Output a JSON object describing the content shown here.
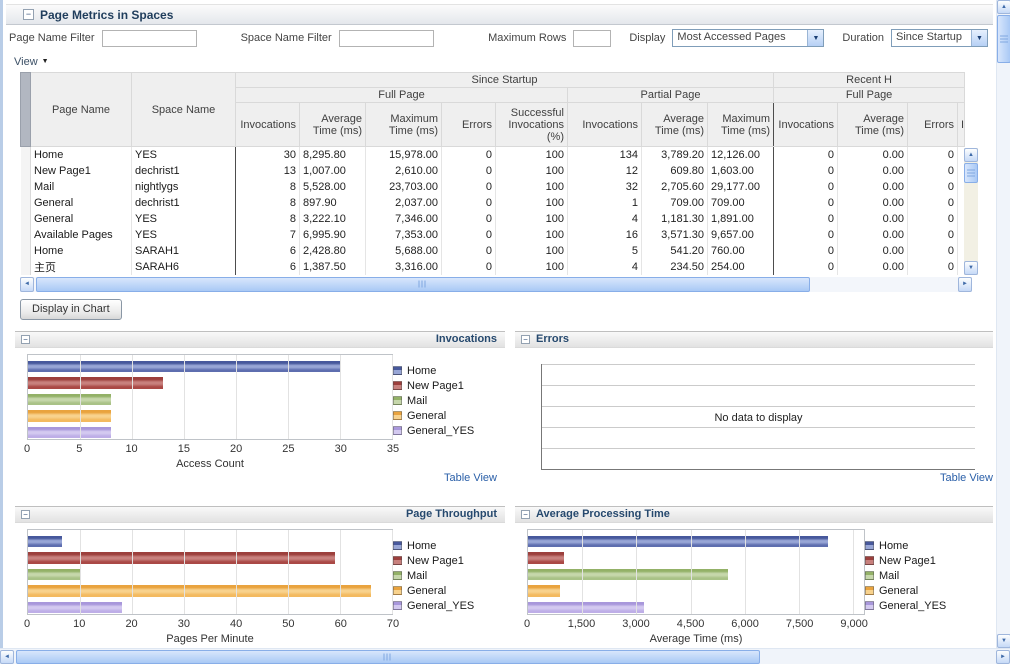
{
  "header": {
    "title": "Page Metrics in Spaces"
  },
  "filters": {
    "page_name_label": "Page Name Filter",
    "page_name_value": "",
    "space_name_label": "Space Name Filter",
    "space_name_value": "",
    "max_rows_label": "Maximum Rows",
    "max_rows_value": "",
    "display_label": "Display",
    "display_value": "Most Accessed Pages",
    "duration_label": "Duration",
    "duration_value": "Since Startup"
  },
  "toolbar": {
    "view_label": "View"
  },
  "buttons": {
    "display_in_chart": "Display in Chart"
  },
  "links": {
    "table_view": "Table View"
  },
  "icons": {
    "minus": "−",
    "caret": "▼",
    "up": "▲",
    "down": "▼",
    "left": "◄",
    "right": "►"
  },
  "table": {
    "col_page_name": "Page Name",
    "col_space_name": "Space Name",
    "group_since_startup": "Since Startup",
    "group_recent": "Recent H",
    "group_full_page": "Full Page",
    "group_partial_page": "Partial Page",
    "group_full_page_recent": "Full Page",
    "headers": [
      "Invocations",
      "Average Time (ms)",
      "Maximum Time (ms)",
      "Errors",
      "Successful Invocations (%)",
      "Invocations",
      "Average Time (ms)",
      "Maximum Time (ms)",
      "Invocations",
      "Average Time (ms)",
      "Errors"
    ],
    "clipped_col": "I",
    "rows": [
      [
        "Home",
        "YES",
        "30",
        "8,295.80",
        "15,978.00",
        "0",
        "100",
        "134",
        "3,789.20",
        "12,126.00",
        "0",
        "0.00",
        "0"
      ],
      [
        "New Page1",
        "dechrist1",
        "13",
        "1,007.00",
        "2,610.00",
        "0",
        "100",
        "12",
        "609.80",
        "1,603.00",
        "0",
        "0.00",
        "0"
      ],
      [
        "Mail",
        "nightlygs",
        "8",
        "5,528.00",
        "23,703.00",
        "0",
        "100",
        "32",
        "2,705.60",
        "29,177.00",
        "0",
        "0.00",
        "0"
      ],
      [
        "General",
        "dechrist1",
        "8",
        "897.90",
        "2,037.00",
        "0",
        "100",
        "1",
        "709.00",
        "709.00",
        "0",
        "0.00",
        "0"
      ],
      [
        "General",
        "YES",
        "8",
        "3,222.10",
        "7,346.00",
        "0",
        "100",
        "4",
        "1,181.30",
        "1,891.00",
        "0",
        "0.00",
        "0"
      ],
      [
        "Available Pages",
        "YES",
        "7",
        "6,995.90",
        "7,353.00",
        "0",
        "100",
        "16",
        "3,571.30",
        "9,657.00",
        "0",
        "0.00",
        "0"
      ],
      [
        "Home",
        "SARAH1",
        "6",
        "2,428.80",
        "5,688.00",
        "0",
        "100",
        "5",
        "541.20",
        "760.00",
        "0",
        "0.00",
        "0"
      ],
      [
        "主页",
        "SARAH6",
        "6",
        "1,387.50",
        "3,316.00",
        "0",
        "100",
        "4",
        "234.50",
        "254.00",
        "0",
        "0.00",
        "0"
      ]
    ]
  },
  "palette": {
    "Home": {
      "dark": "#47589c",
      "light": "#98a6d6",
      "base": "#5e6eaf"
    },
    "New Page1": {
      "dark": "#9c3f3c",
      "light": "#c8807d",
      "base": "#aa4946"
    },
    "Mail": {
      "dark": "#93b167",
      "light": "#c6d7ab",
      "base": "#a9c287"
    },
    "General": {
      "dark": "#e9a33e",
      "light": "#f8d28d",
      "base": "#f3ba60"
    },
    "General_YES": {
      "dark": "#a897db",
      "light": "#d3c9f0",
      "base": "#beaee7"
    }
  },
  "chart_data": [
    {
      "id": "invocations",
      "type": "bar",
      "title": "Invocations",
      "xlabel": "Access Count",
      "xmax": 35,
      "grid": true,
      "legend_position": "right",
      "ticks": [
        {
          "label": "0",
          "value": 0
        },
        {
          "label": "5",
          "value": 5
        },
        {
          "label": "10",
          "value": 10
        },
        {
          "label": "15",
          "value": 15
        },
        {
          "label": "20",
          "value": 20
        },
        {
          "label": "25",
          "value": 25
        },
        {
          "label": "30",
          "value": 30
        },
        {
          "label": "35",
          "value": 35
        }
      ],
      "series": [
        {
          "name": "Home",
          "value": 30
        },
        {
          "name": "New Page1",
          "value": 13
        },
        {
          "name": "Mail",
          "value": 8
        },
        {
          "name": "General",
          "value": 8
        },
        {
          "name": "General_YES",
          "value": 8
        }
      ]
    },
    {
      "id": "errors",
      "type": "bar",
      "title": "Errors",
      "empty_text": "No data to display",
      "series": []
    },
    {
      "id": "page_throughput",
      "type": "bar",
      "title": "Page Throughput",
      "xlabel": "Pages Per Minute",
      "xmax": 70,
      "grid": true,
      "legend_position": "right",
      "ticks": [
        {
          "label": "0",
          "value": 0
        },
        {
          "label": "10",
          "value": 10
        },
        {
          "label": "20",
          "value": 20
        },
        {
          "label": "30",
          "value": 30
        },
        {
          "label": "40",
          "value": 40
        },
        {
          "label": "50",
          "value": 50
        },
        {
          "label": "60",
          "value": 60
        },
        {
          "label": "70",
          "value": 70
        }
      ],
      "series": [
        {
          "name": "Home",
          "value": 6.5
        },
        {
          "name": "New Page1",
          "value": 59
        },
        {
          "name": "Mail",
          "value": 10
        },
        {
          "name": "General",
          "value": 66
        },
        {
          "name": "General_YES",
          "value": 18
        }
      ]
    },
    {
      "id": "average_processing_time",
      "type": "bar",
      "title": "Average Processing Time",
      "xlabel": "Average Time (ms)",
      "xmax": 9300,
      "grid": true,
      "legend_position": "right",
      "ticks": [
        {
          "label": "0",
          "value": 0
        },
        {
          "label": "1,500",
          "value": 1500
        },
        {
          "label": "3,000",
          "value": 3000
        },
        {
          "label": "4,500",
          "value": 4500
        },
        {
          "label": "6,000",
          "value": 6000
        },
        {
          "label": "7,500",
          "value": 7500
        },
        {
          "label": "9,000",
          "value": 9000
        }
      ],
      "series": [
        {
          "name": "Home",
          "value": 8295.8
        },
        {
          "name": "New Page1",
          "value": 1007
        },
        {
          "name": "Mail",
          "value": 5528
        },
        {
          "name": "General",
          "value": 897.9
        },
        {
          "name": "General_YES",
          "value": 3222.1
        }
      ]
    }
  ]
}
